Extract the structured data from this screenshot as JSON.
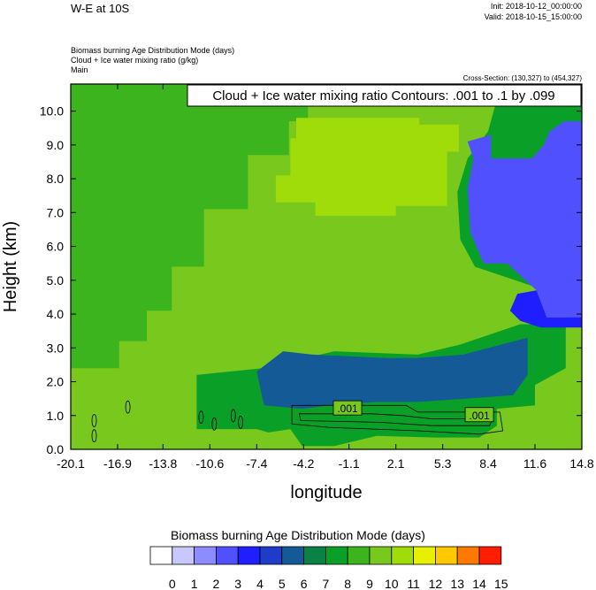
{
  "header": {
    "title": "W-E at 10S",
    "init": "Init: 2018-10-12_00:00:00",
    "valid": "Valid: 2018-10-15_15:00:00",
    "subtitle_lines": [
      "Biomass burning Age Distribution Mode   (days)",
      "Cloud + Ice water mixing ratio   (g/kg)",
      "Main"
    ],
    "cross_section": "Cross-Section: (130,327) to (454,327)",
    "contour_note": "Cloud + Ice water mixing ratio Contours: .001 to .1 by .099"
  },
  "chart_data": {
    "type": "heatmap",
    "xlabel": "longitude",
    "ylabel": "Height (km)",
    "xlim": [
      -20.1,
      14.8
    ],
    "ylim": [
      0.0,
      10.8
    ],
    "x_ticks": [
      "-20.1",
      "-16.9",
      "-13.8",
      "-10.6",
      "-7.4",
      "-4.2",
      "-1.1",
      "2.1",
      "5.3",
      "8.4",
      "11.6",
      "14.8"
    ],
    "y_ticks": [
      "0.0",
      "1.0",
      "2.0",
      "3.0",
      "4.0",
      "5.0",
      "6.0",
      "7.0",
      "8.0",
      "9.0",
      "10.0"
    ],
    "contour_labels": [
      {
        "text": ".001",
        "x": -1.2,
        "y": 1.2
      },
      {
        "text": ".001",
        "x": 7.8,
        "y": 1.0
      }
    ],
    "regions": [
      {
        "name": "value 10 background",
        "value": 10,
        "polygon": [
          [
            -20.1,
            0
          ],
          [
            14.8,
            0
          ],
          [
            14.8,
            10.8
          ],
          [
            -20.1,
            10.8
          ]
        ]
      },
      {
        "name": "value 9 upper-left",
        "value": 9,
        "polygon": [
          [
            -20.1,
            10.8
          ],
          [
            -3.9,
            10.8
          ],
          [
            -3.9,
            9.7
          ],
          [
            -5.2,
            9.7
          ],
          [
            -5.2,
            8.7
          ],
          [
            -8.0,
            8.7
          ],
          [
            -8.0,
            7.1
          ],
          [
            -11.0,
            7.1
          ],
          [
            -11.0,
            5.4
          ],
          [
            -13.2,
            5.4
          ],
          [
            -13.2,
            4.1
          ],
          [
            -14.9,
            4.1
          ],
          [
            -14.9,
            3.2
          ],
          [
            -16.8,
            3.2
          ],
          [
            -16.8,
            2.4
          ],
          [
            -20.1,
            2.4
          ]
        ]
      },
      {
        "name": "value 11 band",
        "value": 11,
        "polygon": [
          [
            -4.7,
            9.8
          ],
          [
            3.7,
            9.8
          ],
          [
            3.7,
            9.6
          ],
          [
            6.4,
            9.6
          ],
          [
            6.4,
            8.8
          ],
          [
            5.6,
            8.8
          ],
          [
            5.6,
            7.2
          ],
          [
            2.1,
            7.2
          ],
          [
            2.1,
            6.9
          ],
          [
            -3.4,
            6.9
          ],
          [
            -3.4,
            7.3
          ],
          [
            -6.1,
            7.3
          ],
          [
            -6.1,
            8.1
          ],
          [
            -5.1,
            8.1
          ],
          [
            -5.1,
            9.2
          ],
          [
            -4.7,
            9.2
          ]
        ]
      },
      {
        "name": "value 8 upper-right",
        "value": 8,
        "polygon": [
          [
            4.6,
            10.8
          ],
          [
            14.8,
            10.8
          ],
          [
            14.8,
            3.7
          ],
          [
            10.6,
            3.7
          ],
          [
            6.5,
            3.1
          ],
          [
            3.6,
            2.8
          ],
          [
            -2.1,
            2.9
          ],
          [
            -7.0,
            2.4
          ],
          [
            -11.5,
            2.2
          ],
          [
            -11.5,
            0.6
          ],
          [
            -7.4,
            0.6
          ],
          [
            -6.6,
            0.5
          ],
          [
            -5.1,
            0.6
          ],
          [
            -4.3,
            0.1
          ],
          [
            -2.1,
            0.1
          ],
          [
            0.8,
            0.4
          ],
          [
            4.7,
            0.35
          ],
          [
            7.8,
            0.35
          ],
          [
            9.0,
            0.7
          ],
          [
            9.0,
            1.2
          ],
          [
            11.6,
            1.3
          ],
          [
            11.6,
            1.9
          ],
          [
            13.7,
            2.4
          ],
          [
            13.7,
            4.0
          ],
          [
            11.6,
            4.8
          ],
          [
            7.5,
            5.4
          ],
          [
            6.5,
            6.2
          ],
          [
            6.3,
            7.6
          ],
          [
            7.0,
            8.6
          ],
          [
            8.4,
            9.4
          ],
          [
            8.9,
            10.2
          ],
          [
            6.2,
            10.2
          ]
        ]
      },
      {
        "name": "value 6 lower band",
        "value": 6,
        "polygon": [
          [
            -7.4,
            2.3
          ],
          [
            -5.6,
            2.9
          ],
          [
            -3.6,
            2.8
          ],
          [
            1.5,
            2.7
          ],
          [
            3.5,
            2.7
          ],
          [
            6.7,
            2.8
          ],
          [
            9.3,
            3.1
          ],
          [
            11.1,
            3.3
          ],
          [
            11.1,
            2.2
          ],
          [
            10.1,
            1.6
          ],
          [
            7.0,
            1.5
          ],
          [
            3.5,
            1.4
          ],
          [
            0.7,
            1.4
          ],
          [
            -2.4,
            1.3
          ],
          [
            -4.3,
            1.2
          ],
          [
            -6.9,
            1.3
          ]
        ]
      },
      {
        "name": "value 3 upper-right",
        "value": 3,
        "polygon": [
          [
            7.0,
            9.1
          ],
          [
            8.6,
            9.3
          ],
          [
            8.6,
            8.6
          ],
          [
            11.4,
            8.6
          ],
          [
            12.2,
            9.0
          ],
          [
            12.6,
            9.4
          ],
          [
            13.6,
            9.7
          ],
          [
            14.8,
            9.7
          ],
          [
            14.8,
            3.9
          ],
          [
            12.4,
            3.9
          ],
          [
            11.7,
            4.7
          ],
          [
            9.7,
            5.5
          ],
          [
            8.1,
            5.5
          ],
          [
            7.2,
            6.4
          ],
          [
            7.0,
            7.7
          ],
          [
            7.4,
            8.6
          ]
        ]
      },
      {
        "name": "value 4 mid-right",
        "value": 4,
        "polygon": [
          [
            11.7,
            4.7
          ],
          [
            12.4,
            3.9
          ],
          [
            14.8,
            3.9
          ],
          [
            14.8,
            3.6
          ],
          [
            12.0,
            3.6
          ],
          [
            10.6,
            3.8
          ],
          [
            9.9,
            4.1
          ],
          [
            10.4,
            4.6
          ]
        ]
      }
    ],
    "colorbar": {
      "title": "Biomass burning Age Distribution Mode  (days)",
      "labels": [
        "0",
        "1",
        "2",
        "3",
        "4",
        "5",
        "6",
        "7",
        "8",
        "9",
        "10",
        "11",
        "12",
        "13",
        "14",
        "15"
      ],
      "colors": [
        "#ffffff",
        "#c8c8ff",
        "#8c8cff",
        "#5050ff",
        "#1e1eff",
        "#1e3cc8",
        "#145a96",
        "#0a8246",
        "#0aa028",
        "#3cb41e",
        "#78c81e",
        "#a0dc0a",
        "#e6f000",
        "#ffc800",
        "#ff7800",
        "#ff1e00"
      ]
    }
  }
}
